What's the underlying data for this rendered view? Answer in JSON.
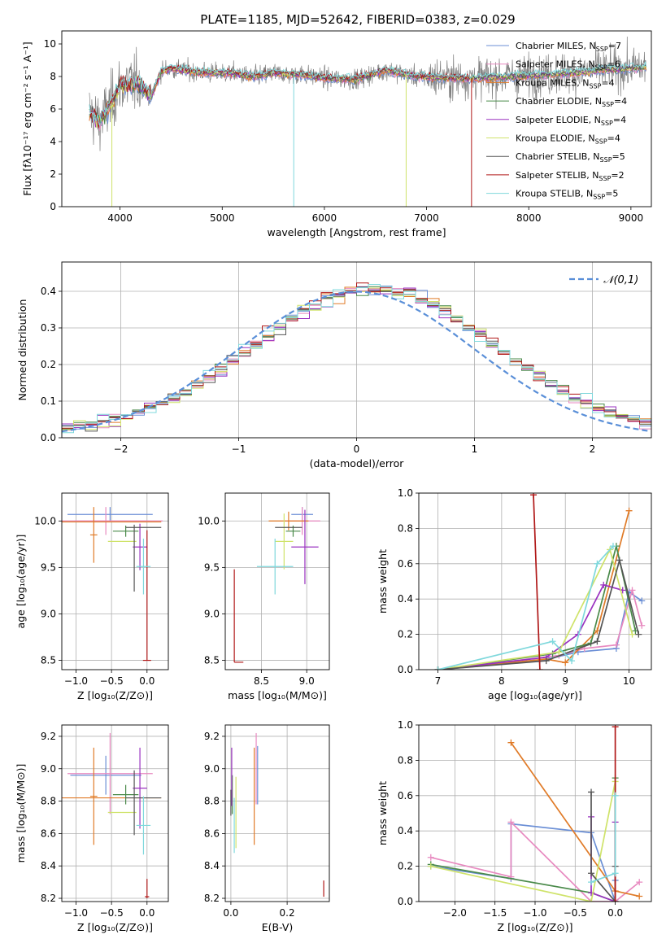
{
  "figure_title": "PLATE=1185, MJD=52642, FIBERID=0383, z=0.029",
  "colors": {
    "chabrier_miles": "#6b8fd6",
    "salpeter_miles": "#e88ac0",
    "kroupa_miles": "#e07b28",
    "chabrier_elodie": "#4a8a4a",
    "salpeter_elodie": "#9a32c0",
    "kroupa_elodie": "#cfe36a",
    "chabrier_stelib": "#555555",
    "salpeter_stelib": "#b01818",
    "kroupa_stelib": "#7fd8dc",
    "data": "#7f7f7f",
    "normal": "#5a8fd8",
    "grid": "#b0b0b0"
  },
  "legend_entries": [
    {
      "label": "Chabrier MILES, N",
      "sub": "SSP",
      "tail": "=7"
    },
    {
      "label": "Salpeter MILES, N",
      "sub": "SSP",
      "tail": "=6"
    },
    {
      "label": "Kroupa MILES, N",
      "sub": "SSP",
      "tail": "=4"
    },
    {
      "label": "Chabrier ELODIE, N",
      "sub": "SSP",
      "tail": "=4"
    },
    {
      "label": "Salpeter ELODIE, N",
      "sub": "SSP",
      "tail": "=4"
    },
    {
      "label": "Kroupa ELODIE, N",
      "sub": "SSP",
      "tail": "=4"
    },
    {
      "label": "Chabrier STELIB, N",
      "sub": "SSP",
      "tail": "=5"
    },
    {
      "label": "Salpeter STELIB, N",
      "sub": "SSP",
      "tail": "=2"
    },
    {
      "label": "Kroupa STELIB, N",
      "sub": "SSP",
      "tail": "=5"
    }
  ],
  "chart_data": [
    {
      "id": "spectrum",
      "type": "line",
      "xlabel": "wavelength [Angstrom, rest frame]",
      "ylabel": "Flux [fλ10⁻¹⁷ erg cm⁻² s⁻¹ A⁻¹]",
      "xlim": [
        3430,
        9200
      ],
      "ylim": [
        0,
        10.8
      ],
      "xticks": [
        4000,
        5000,
        6000,
        7000,
        8000,
        9000
      ],
      "yticks": [
        0,
        2,
        4,
        6,
        8,
        10
      ],
      "legend": "top-right",
      "continuum": [
        [
          3700,
          5.8
        ],
        [
          3800,
          5.2
        ],
        [
          3900,
          6.2
        ],
        [
          4000,
          7.4
        ],
        [
          4100,
          7.6
        ],
        [
          4200,
          7.5
        ],
        [
          4300,
          6.7
        ],
        [
          4400,
          8.3
        ],
        [
          4500,
          8.5
        ],
        [
          4700,
          8.3
        ],
        [
          4900,
          8.2
        ],
        [
          5100,
          8.2
        ],
        [
          5300,
          8.0
        ],
        [
          5500,
          8.2
        ],
        [
          5800,
          8.1
        ],
        [
          6000,
          7.9
        ],
        [
          6300,
          7.8
        ],
        [
          6600,
          8.4
        ],
        [
          6900,
          8.0
        ],
        [
          7200,
          7.9
        ],
        [
          7500,
          7.9
        ],
        [
          7800,
          8.0
        ],
        [
          8100,
          8.1
        ],
        [
          8400,
          8.2
        ],
        [
          8700,
          8.4
        ],
        [
          9000,
          8.5
        ],
        [
          9150,
          8.6
        ]
      ]
    },
    {
      "id": "residuals",
      "type": "bar",
      "xlabel": "(data-model)/error",
      "ylabel": "Normed distribution",
      "xlim": [
        -2.5,
        2.5
      ],
      "ylim": [
        0,
        0.48
      ],
      "xticks": [
        -2,
        -1,
        0,
        1,
        2
      ],
      "yticks": [
        0.0,
        0.1,
        0.2,
        0.3,
        0.4
      ],
      "grid": true,
      "legend": "top-right",
      "normal_label": "𝒩(0,1)",
      "bin_width": 0.1
    },
    {
      "id": "age_vs_Z",
      "type": "scatter",
      "xlabel": "Z [log₁₀(Z/Z⊙)]",
      "ylabel": "age  [log₁₀(age/yr)]",
      "xlim": [
        -1.2,
        0.3
      ],
      "ylim": [
        8.4,
        10.3
      ],
      "xticks": [
        -1.0,
        -0.5,
        0.0
      ],
      "yticks": [
        8.5,
        9.0,
        9.5,
        10.0
      ],
      "points": [
        {
          "x": -0.52,
          "y": 10.07,
          "xe": 0.6,
          "ye": 0.08,
          "c": "chabrier_miles"
        },
        {
          "x": -0.58,
          "y": 10.0,
          "xe": 0.62,
          "ye": 0.15,
          "c": "salpeter_miles"
        },
        {
          "x": -0.4,
          "y": 10.0,
          "xe": 0.62,
          "ye": 0.0,
          "c": "salpeter_miles"
        },
        {
          "x": -0.75,
          "y": 9.85,
          "xe": 0.05,
          "ye": 0.3,
          "c": "kroupa_miles"
        },
        {
          "x": -0.5,
          "y": 9.99,
          "xe": 0.7,
          "ye": 0.0,
          "c": "kroupa_miles"
        },
        {
          "x": -0.3,
          "y": 9.89,
          "xe": 0.18,
          "ye": 0.06,
          "c": "chabrier_elodie"
        },
        {
          "x": -0.1,
          "y": 9.72,
          "xe": 0.1,
          "ye": 0.25,
          "c": "salpeter_elodie"
        },
        {
          "x": -0.35,
          "y": 9.78,
          "xe": 0.2,
          "ye": 0.0,
          "c": "kroupa_elodie"
        },
        {
          "x": -0.18,
          "y": 9.6,
          "xe": 0.0,
          "ye": 0.36,
          "c": "chabrier_stelib"
        },
        {
          "x": -0.05,
          "y": 9.93,
          "xe": 0.25,
          "ye": 0.0,
          "c": "chabrier_stelib"
        },
        {
          "x": 0.0,
          "y": 8.5,
          "xe": 0.0,
          "ye": 0.0,
          "c": "salpeter_stelib"
        },
        {
          "x": 0.0,
          "y": 9.2,
          "xe": 0.0,
          "ye": 0.7,
          "c": "salpeter_stelib"
        },
        {
          "x": -0.05,
          "y": 9.51,
          "xe": 0.1,
          "ye": 0.3,
          "c": "kroupa_stelib"
        }
      ]
    },
    {
      "id": "age_vs_mass",
      "type": "scatter",
      "xlabel": "mass [log₁₀(M/M⊙)]",
      "ylabel": "",
      "xlim": [
        8.1,
        9.25
      ],
      "ylim": [
        8.4,
        10.3
      ],
      "xticks": [
        8.5,
        9.0
      ],
      "yticks": [
        8.5,
        9.0,
        9.5,
        10.0
      ],
      "points": [
        {
          "x": 8.95,
          "y": 10.07,
          "xe": 0.12,
          "ye": 0.08,
          "c": "chabrier_miles"
        },
        {
          "x": 8.95,
          "y": 10.0,
          "xe": 0.2,
          "ye": 0.15,
          "c": "salpeter_miles"
        },
        {
          "x": 8.8,
          "y": 10.0,
          "xe": 0.22,
          "ye": 0.1,
          "c": "kroupa_miles"
        },
        {
          "x": 8.85,
          "y": 9.89,
          "xe": 0.08,
          "ye": 0.06,
          "c": "chabrier_elodie"
        },
        {
          "x": 8.98,
          "y": 9.72,
          "xe": 0.15,
          "ye": 0.4,
          "c": "salpeter_elodie"
        },
        {
          "x": 8.75,
          "y": 9.78,
          "xe": 0.1,
          "ye": 0.3,
          "c": "kroupa_elodie"
        },
        {
          "x": 8.8,
          "y": 9.93,
          "xe": 0.15,
          "ye": 0.0,
          "c": "chabrier_stelib"
        },
        {
          "x": 8.2,
          "y": 8.98,
          "xe": 0.0,
          "ye": 0.5,
          "c": "salpeter_stelib"
        },
        {
          "x": 8.25,
          "y": 8.48,
          "xe": 0.05,
          "ye": 0.0,
          "c": "salpeter_stelib"
        },
        {
          "x": 8.65,
          "y": 9.51,
          "xe": 0.2,
          "ye": 0.3,
          "c": "kroupa_stelib"
        }
      ]
    },
    {
      "id": "weight_vs_age",
      "type": "line",
      "xlabel": "age  [log₁₀(age/yr)]",
      "ylabel": "mass weight",
      "xlim": [
        6.7,
        10.35
      ],
      "ylim": [
        0,
        1.0
      ],
      "xticks": [
        7,
        8,
        9,
        10
      ],
      "yticks": [
        0.0,
        0.2,
        0.4,
        0.6,
        0.8,
        1.0
      ],
      "grid": true,
      "series": [
        {
          "c": "chabrier_miles",
          "x": [
            7.0,
            8.6,
            9.2,
            9.8,
            10.0,
            10.2
          ],
          "y": [
            0.0,
            0.05,
            0.1,
            0.12,
            0.44,
            0.39
          ]
        },
        {
          "c": "salpeter_miles",
          "x": [
            7.0,
            8.9,
            9.3,
            9.8,
            10.05,
            10.2
          ],
          "y": [
            0.0,
            0.08,
            0.12,
            0.14,
            0.45,
            0.25
          ]
        },
        {
          "c": "kroupa_miles",
          "x": [
            7.0,
            8.7,
            9.0,
            9.5,
            10.0
          ],
          "y": [
            0.0,
            0.06,
            0.04,
            0.22,
            0.9
          ]
        },
        {
          "c": "chabrier_elodie",
          "x": [
            7.0,
            8.8,
            9.4,
            9.8,
            10.1
          ],
          "y": [
            0.0,
            0.09,
            0.15,
            0.7,
            0.22
          ]
        },
        {
          "c": "salpeter_elodie",
          "x": [
            7.0,
            8.7,
            9.2,
            9.6,
            9.9
          ],
          "y": [
            0.0,
            0.07,
            0.2,
            0.48,
            0.45
          ]
        },
        {
          "c": "kroupa_elodie",
          "x": [
            7.0,
            8.9,
            9.7,
            10.05
          ],
          "y": [
            0.0,
            0.1,
            0.68,
            0.2
          ]
        },
        {
          "c": "chabrier_stelib",
          "x": [
            7.0,
            8.7,
            9.5,
            9.85,
            10.15
          ],
          "y": [
            0.0,
            0.05,
            0.16,
            0.62,
            0.2
          ]
        },
        {
          "c": "salpeter_stelib",
          "x": [
            8.5,
            8.6
          ],
          "y": [
            0.99,
            0.0
          ]
        },
        {
          "c": "kroupa_stelib",
          "x": [
            7.0,
            8.8,
            9.1,
            9.5,
            9.75
          ],
          "y": [
            0.0,
            0.16,
            0.05,
            0.6,
            0.7
          ]
        }
      ]
    },
    {
      "id": "mass_vs_Z",
      "type": "scatter",
      "xlabel": "Z [log₁₀(Z/Z⊙)]",
      "ylabel": "mass [log₁₀(M/M⊙)]",
      "xlim": [
        -1.2,
        0.3
      ],
      "ylim": [
        8.18,
        9.27
      ],
      "xticks": [
        -1.0,
        -0.5,
        0.0
      ],
      "yticks": [
        8.2,
        8.4,
        8.6,
        8.8,
        9.0,
        9.2
      ],
      "points": [
        {
          "x": -0.58,
          "y": 8.96,
          "xe": 0.5,
          "ye": 0.12,
          "c": "chabrier_miles"
        },
        {
          "x": -0.52,
          "y": 8.97,
          "xe": 0.6,
          "ye": 0.25,
          "c": "salpeter_miles"
        },
        {
          "x": -0.75,
          "y": 8.83,
          "xe": 0.05,
          "ye": 0.3,
          "c": "kroupa_miles"
        },
        {
          "x": -0.5,
          "y": 8.82,
          "xe": 0.7,
          "ye": 0.0,
          "c": "kroupa_miles"
        },
        {
          "x": -0.3,
          "y": 8.84,
          "xe": 0.18,
          "ye": 0.06,
          "c": "chabrier_elodie"
        },
        {
          "x": -0.1,
          "y": 8.88,
          "xe": 0.1,
          "ye": 0.25,
          "c": "salpeter_elodie"
        },
        {
          "x": -0.35,
          "y": 8.73,
          "xe": 0.2,
          "ye": 0.0,
          "c": "kroupa_elodie"
        },
        {
          "x": -0.18,
          "y": 8.79,
          "xe": 0.0,
          "ye": 0.2,
          "c": "chabrier_stelib"
        },
        {
          "x": -0.05,
          "y": 8.82,
          "xe": 0.25,
          "ye": 0.0,
          "c": "chabrier_stelib"
        },
        {
          "x": 0.0,
          "y": 8.26,
          "xe": 0.0,
          "ye": 0.06,
          "c": "salpeter_stelib"
        },
        {
          "x": 0.0,
          "y": 8.21,
          "xe": 0.03,
          "ye": 0.0,
          "c": "salpeter_stelib"
        },
        {
          "x": -0.05,
          "y": 8.65,
          "xe": 0.1,
          "ye": 0.18,
          "c": "kroupa_stelib"
        }
      ]
    },
    {
      "id": "mass_vs_ebv",
      "type": "scatter",
      "xlabel": "E(B-V)",
      "ylabel": "",
      "xlim": [
        -0.02,
        0.35
      ],
      "ylim": [
        8.18,
        9.27
      ],
      "xticks": [
        0.0,
        0.2
      ],
      "yticks": [
        8.2,
        8.4,
        8.6,
        8.8,
        9.0,
        9.2
      ],
      "points": [
        {
          "x": 0.095,
          "y": 8.96,
          "xe": 0.0,
          "ye": 0.18,
          "c": "chabrier_miles"
        },
        {
          "x": 0.09,
          "y": 9.0,
          "xe": 0.0,
          "ye": 0.22,
          "c": "salpeter_miles"
        },
        {
          "x": 0.083,
          "y": 8.83,
          "xe": 0.0,
          "ye": 0.3,
          "c": "kroupa_miles"
        },
        {
          "x": 0.005,
          "y": 8.84,
          "xe": 0.0,
          "ye": 0.12,
          "c": "chabrier_elodie"
        },
        {
          "x": 0.003,
          "y": 8.95,
          "xe": 0.0,
          "ye": 0.18,
          "c": "salpeter_elodie"
        },
        {
          "x": 0.018,
          "y": 8.73,
          "xe": 0.0,
          "ye": 0.22,
          "c": "kroupa_elodie"
        },
        {
          "x": 0.0,
          "y": 8.79,
          "xe": 0.0,
          "ye": 0.08,
          "c": "chabrier_stelib"
        },
        {
          "x": 0.33,
          "y": 8.26,
          "xe": 0.0,
          "ye": 0.05,
          "c": "salpeter_stelib"
        },
        {
          "x": 0.012,
          "y": 8.65,
          "xe": 0.0,
          "ye": 0.17,
          "c": "kroupa_stelib"
        }
      ]
    },
    {
      "id": "weight_vs_Z",
      "type": "line",
      "xlabel": "Z [log₁₀(Z/Z⊙)]",
      "ylabel": "mass weight",
      "xlim": [
        -2.45,
        0.45
      ],
      "ylim": [
        0,
        1.0
      ],
      "xticks": [
        -2.0,
        -1.5,
        -1.0,
        -0.5,
        0.0
      ],
      "yticks": [
        0.0,
        0.2,
        0.4,
        0.6,
        0.8,
        1.0
      ],
      "grid": true,
      "series": [
        {
          "c": "chabrier_miles",
          "x": [
            -2.3,
            -1.3,
            -1.3,
            -0.3,
            0.0,
            0.0
          ],
          "y": [
            0.2,
            0.13,
            0.44,
            0.39,
            0.0,
            0.12
          ]
        },
        {
          "c": "salpeter_miles",
          "x": [
            -2.3,
            -1.3,
            -1.3,
            -0.3,
            0.0,
            0.3
          ],
          "y": [
            0.25,
            0.14,
            0.45,
            0.0,
            0.0,
            0.11
          ]
        },
        {
          "c": "kroupa_miles",
          "x": [
            -1.3,
            0.0,
            0.3
          ],
          "y": [
            0.9,
            0.06,
            0.03
          ]
        },
        {
          "c": "chabrier_elodie",
          "x": [
            -2.3,
            -0.3,
            0.0,
            0.0
          ],
          "y": [
            0.21,
            0.05,
            0.0,
            0.7
          ]
        },
        {
          "c": "salpeter_elodie",
          "x": [
            -0.3,
            -0.3,
            0.0,
            0.0
          ],
          "y": [
            0.48,
            0.05,
            0.0,
            0.45
          ]
        },
        {
          "c": "kroupa_elodie",
          "x": [
            -2.3,
            -0.3,
            0.0
          ],
          "y": [
            0.2,
            0.0,
            0.68
          ]
        },
        {
          "c": "chabrier_stelib",
          "x": [
            -0.3,
            -0.3,
            0.0,
            0.0
          ],
          "y": [
            0.62,
            0.16,
            0.0,
            0.2
          ]
        },
        {
          "c": "salpeter_stelib",
          "x": [
            0.0,
            0.0
          ],
          "y": [
            0.99,
            0.0
          ]
        },
        {
          "c": "kroupa_stelib",
          "x": [
            -0.3,
            0.0,
            0.0
          ],
          "y": [
            0.11,
            0.16,
            0.6
          ]
        }
      ]
    }
  ]
}
